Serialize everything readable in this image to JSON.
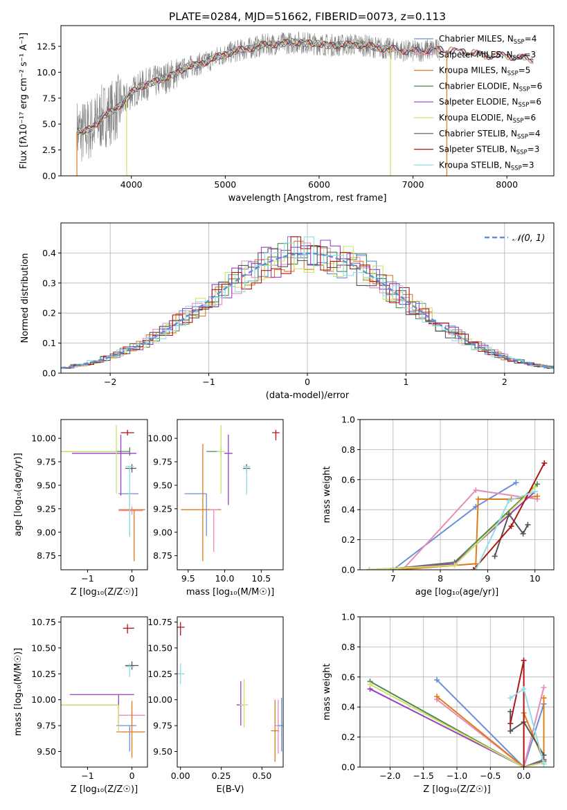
{
  "figure_title": "PLATE=0284, MJD=51662, FIBERID=0073, z=0.113",
  "colors": {
    "spectrum": "#808080",
    "Chabrier MILES": "#6a8fd8",
    "Salpeter MILES": "#e88ab8",
    "Kroupa MILES": "#e07b1a",
    "Chabrier ELODIE": "#4e8a4e",
    "Salpeter ELODIE": "#9a3fc4",
    "Kroupa ELODIE": "#cfe06a",
    "Chabrier STELIB": "#555555",
    "Salpeter STELIB": "#b01515",
    "Kroupa STELIB": "#8fdde6",
    "gaussian": "#5b8fd6"
  },
  "chart_data": [
    {
      "type": "line",
      "title": "PLATE=0284, MJD=51662, FIBERID=0073, z=0.113",
      "xlabel": "wavelength [Angstrom, rest frame]",
      "ylabel": "Flux [fλ10⁻¹⁷ erg cm⁻² s⁻¹ A⁻¹]",
      "xlim": [
        3250,
        8500
      ],
      "ylim": [
        0,
        14.5
      ],
      "xticks": [
        4000,
        5000,
        6000,
        7000,
        8000
      ],
      "yticks": [
        0.0,
        2.5,
        5.0,
        7.5,
        10.0,
        12.5
      ],
      "legend_position": "right",
      "legend": [
        {
          "label": "Chabrier MILES, N",
          "sub": "SSP",
          "suffix": "=4"
        },
        {
          "label": "Salpeter MILES, N",
          "sub": "SSP",
          "suffix": "=3"
        },
        {
          "label": "Kroupa MILES, N",
          "sub": "SSP",
          "suffix": "=5"
        },
        {
          "label": "Chabrier ELODIE, N",
          "sub": "SSP",
          "suffix": "=6"
        },
        {
          "label": "Salpeter ELODIE, N",
          "sub": "SSP",
          "suffix": "=6"
        },
        {
          "label": "Kroupa ELODIE, N",
          "sub": "SSP",
          "suffix": "=6"
        },
        {
          "label": "Chabrier STELIB, N",
          "sub": "SSP",
          "suffix": "=4"
        },
        {
          "label": "Salpeter STELIB, N",
          "sub": "SSP",
          "suffix": "=3"
        },
        {
          "label": "Kroupa STELIB, N",
          "sub": "SSP",
          "suffix": "=3"
        }
      ],
      "model_continuum": [
        [
          3420,
          4.3
        ],
        [
          3500,
          4.2
        ],
        [
          3600,
          4.8
        ],
        [
          3700,
          5.8
        ],
        [
          3800,
          6.2
        ],
        [
          3900,
          7.0
        ],
        [
          4000,
          8.0
        ],
        [
          4100,
          8.6
        ],
        [
          4200,
          9.0
        ],
        [
          4300,
          9.2
        ],
        [
          4400,
          9.6
        ],
        [
          4600,
          10.5
        ],
        [
          4800,
          11.0
        ],
        [
          5000,
          11.8
        ],
        [
          5200,
          12.2
        ],
        [
          5400,
          12.6
        ],
        [
          5600,
          12.8
        ],
        [
          5800,
          12.9
        ],
        [
          6000,
          12.7
        ],
        [
          6200,
          12.6
        ],
        [
          6400,
          12.7
        ],
        [
          6600,
          12.4
        ],
        [
          6800,
          12.2
        ],
        [
          7000,
          12.0
        ],
        [
          7200,
          12.2
        ],
        [
          7400,
          12.1
        ],
        [
          7600,
          11.9
        ],
        [
          7800,
          11.6
        ],
        [
          8000,
          11.6
        ],
        [
          8200,
          11.3
        ],
        [
          8280,
          11.2
        ]
      ]
    },
    {
      "type": "line",
      "xlabel": "(data-model)/error",
      "ylabel": "Normed distribution",
      "xlim": [
        -2.5,
        2.5
      ],
      "ylim": [
        0,
        0.5
      ],
      "xticks": [
        -2,
        -1,
        0,
        1,
        2
      ],
      "yticks": [
        0.0,
        0.1,
        0.2,
        0.3,
        0.4
      ],
      "grid": true,
      "legend_position": "top-right",
      "legend": "𝒩(0, 1)",
      "gaussian": {
        "mean": 0,
        "sigma": 1
      }
    },
    {
      "type": "scatter",
      "xlabel": "Z [log₁₀(Z/Z☉)]",
      "ylabel": "age  [log₁₀(age/yr)]",
      "xlim": [
        -1.6,
        0.35
      ],
      "ylim": [
        8.6,
        10.2
      ],
      "xticks": [
        -1,
        0
      ],
      "yticks": [
        8.75,
        9.0,
        9.25,
        9.5,
        9.75,
        10.0
      ],
      "points": [
        {
          "model": "Chabrier MILES",
          "x": -0.05,
          "y": 9.41,
          "xerr": [
            0.25,
            0.2
          ],
          "yerr": [
            0.45,
            0.0
          ]
        },
        {
          "model": "Salpeter MILES",
          "x": 0.0,
          "y": 9.23,
          "xerr": [
            0.3,
            0.25
          ],
          "yerr": [
            0.0,
            0.0
          ]
        },
        {
          "model": "Kroupa MILES",
          "x": 0.05,
          "y": 9.24,
          "xerr": [
            0.35,
            0.25
          ],
          "yerr": [
            0.55,
            0.0
          ]
        },
        {
          "model": "Chabrier ELODIE",
          "x": -0.05,
          "y": 9.86,
          "xerr": [
            1.55,
            0.0
          ],
          "yerr": [
            0.0,
            0.0
          ]
        },
        {
          "model": "Salpeter ELODIE",
          "x": -0.25,
          "y": 9.84,
          "xerr": [
            1.1,
            0.35
          ],
          "yerr": [
            0.45,
            0.2
          ]
        },
        {
          "model": "Kroupa ELODIE",
          "x": -0.35,
          "y": 9.86,
          "xerr": [
            1.25,
            0.0
          ],
          "yerr": [
            0.45,
            0.28
          ]
        },
        {
          "model": "Chabrier STELIB",
          "x": 0.0,
          "y": 9.68,
          "xerr": [
            0.15,
            0.1
          ],
          "yerr": [
            0.0,
            0.0
          ]
        },
        {
          "model": "Salpeter STELIB",
          "x": -0.1,
          "y": 10.06,
          "xerr": [
            0.15,
            0.15
          ],
          "yerr": [
            0.03,
            0.03
          ]
        },
        {
          "model": "Kroupa STELIB",
          "x": -0.05,
          "y": 9.7,
          "xerr": [
            0.0,
            0.0
          ],
          "yerr": [
            0.75,
            0.0
          ]
        }
      ]
    },
    {
      "type": "scatter",
      "xlabel": "mass [log₁₀(M/M☉)]",
      "xlim": [
        9.35,
        10.8
      ],
      "ylim": [
        8.6,
        10.2
      ],
      "xticks": [
        9.5,
        10.0,
        10.5
      ],
      "yticks": [
        8.75,
        9.0,
        9.25,
        9.5,
        9.75,
        10.0
      ],
      "points": [
        {
          "model": "Chabrier MILES",
          "x": 9.75,
          "y": 9.41,
          "xerr": [
            0.3,
            0.0
          ],
          "yerr": [
            0.45,
            0.0
          ]
        },
        {
          "model": "Kroupa MILES",
          "x": 9.7,
          "y": 9.24,
          "xerr": [
            0.3,
            0.25
          ],
          "yerr": [
            0.55,
            0.7
          ]
        },
        {
          "model": "Salpeter MILES",
          "x": 9.85,
          "y": 9.24,
          "xerr": [
            0.0,
            0.0
          ],
          "yerr": [
            0.45,
            0.0
          ]
        },
        {
          "model": "Chabrier ELODIE",
          "x": 9.95,
          "y": 9.86,
          "xerr": [
            0.2,
            0.0
          ],
          "yerr": [
            0.0,
            0.0
          ]
        },
        {
          "model": "Salpeter ELODIE",
          "x": 10.05,
          "y": 9.84,
          "xerr": [
            0.0,
            0.0
          ],
          "yerr": [
            0.55,
            0.2
          ]
        },
        {
          "model": "Kroupa ELODIE",
          "x": 9.95,
          "y": 9.86,
          "xerr": [
            0.0,
            0.0
          ],
          "yerr": [
            0.45,
            0.28
          ]
        },
        {
          "model": "Chabrier STELIB",
          "x": 10.3,
          "y": 9.68,
          "xerr": [
            0.05,
            0.05
          ],
          "yerr": [
            0.0,
            0.0
          ]
        },
        {
          "model": "Salpeter STELIB",
          "x": 10.7,
          "y": 10.06,
          "xerr": [
            0.05,
            0.05
          ],
          "yerr": [
            0.08,
            0.03
          ]
        },
        {
          "model": "Kroupa STELIB",
          "x": 10.3,
          "y": 9.7,
          "xerr": [
            0.05,
            0.05
          ],
          "yerr": [
            0.3,
            0.0
          ]
        }
      ]
    },
    {
      "type": "line",
      "xlabel": "age  [log₁₀(age/yr)]",
      "ylabel": "mass weight",
      "xlim": [
        6.3,
        10.4
      ],
      "ylim": [
        0,
        1.0
      ],
      "xticks": [
        7,
        8,
        9,
        10
      ],
      "yticks": [
        0.0,
        0.2,
        0.4,
        0.6,
        0.8,
        1.0
      ],
      "grid": true,
      "series": [
        {
          "model": "Chabrier MILES",
          "x": [
            7.0,
            8.75,
            9.6
          ],
          "y": [
            0.0,
            0.42,
            0.58
          ]
        },
        {
          "model": "Salpeter MILES",
          "x": [
            7.2,
            8.75,
            10.05
          ],
          "y": [
            0.0,
            0.53,
            0.47
          ]
        },
        {
          "model": "Kroupa MILES",
          "x": [
            7.1,
            8.75,
            8.8,
            9.5,
            10.05
          ],
          "y": [
            0.0,
            0.04,
            0.47,
            0.47,
            0.49
          ]
        },
        {
          "model": "Chabrier ELODIE",
          "x": [
            6.5,
            7.1,
            8.3,
            10.05
          ],
          "y": [
            0.0,
            0.01,
            0.05,
            0.57
          ]
        },
        {
          "model": "Salpeter ELODIE",
          "x": [
            6.5,
            7.1,
            8.3,
            10.0
          ],
          "y": [
            0.0,
            0.01,
            0.04,
            0.52
          ]
        },
        {
          "model": "Kroupa ELODIE",
          "x": [
            6.5,
            7.1,
            8.3,
            10.0
          ],
          "y": [
            0.0,
            0.01,
            0.03,
            0.55
          ]
        },
        {
          "model": "Chabrier STELIB",
          "x": [
            9.15,
            9.45,
            9.75,
            9.85
          ],
          "y": [
            0.09,
            0.37,
            0.24,
            0.3
          ]
        },
        {
          "model": "Salpeter STELIB",
          "x": [
            8.7,
            9.5,
            10.2
          ],
          "y": [
            0.0,
            0.29,
            0.71
          ]
        },
        {
          "model": "Kroupa STELIB",
          "x": [
            8.75,
            9.45,
            10.0
          ],
          "y": [
            0.0,
            0.46,
            0.52
          ]
        }
      ]
    },
    {
      "type": "scatter",
      "xlabel": "Z [log₁₀(Z/Z☉)]",
      "ylabel": "mass [log₁₀(M/M☉)]",
      "xlim": [
        -1.6,
        0.35
      ],
      "ylim": [
        9.35,
        10.8
      ],
      "xticks": [
        -1,
        0
      ],
      "yticks": [
        9.5,
        9.75,
        10.0,
        10.25,
        10.5,
        10.75
      ],
      "points": [
        {
          "model": "Chabrier MILES",
          "x": -0.05,
          "y": 9.75,
          "xerr": [
            0.3,
            0.15
          ],
          "yerr": [
            0.25,
            0.0
          ]
        },
        {
          "model": "Salpeter MILES",
          "x": 0.0,
          "y": 9.85,
          "xerr": [
            0.3,
            0.3
          ],
          "yerr": [
            0.0,
            0.0
          ]
        },
        {
          "model": "Kroupa MILES",
          "x": 0.0,
          "y": 9.69,
          "xerr": [
            0.35,
            0.3
          ],
          "yerr": [
            0.25,
            0.3
          ]
        },
        {
          "model": "Chabrier ELODIE",
          "x": -0.3,
          "y": 9.95,
          "xerr": [
            1.3,
            0.0
          ],
          "yerr": [
            0.0,
            0.0
          ]
        },
        {
          "model": "Salpeter ELODIE",
          "x": -0.3,
          "y": 10.05,
          "xerr": [
            1.1,
            0.35
          ],
          "yerr": [
            0.3,
            0.0
          ]
        },
        {
          "model": "Kroupa ELODIE",
          "x": -0.3,
          "y": 9.95,
          "xerr": [
            1.3,
            0.0
          ],
          "yerr": [
            0.25,
            0.0
          ]
        },
        {
          "model": "Chabrier STELIB",
          "x": 0.0,
          "y": 10.33,
          "xerr": [
            0.15,
            0.15
          ],
          "yerr": [
            0.0,
            0.0
          ]
        },
        {
          "model": "Salpeter STELIB",
          "x": -0.1,
          "y": 10.69,
          "xerr": [
            0.1,
            0.15
          ],
          "yerr": [
            0.05,
            0.04
          ]
        },
        {
          "model": "Kroupa STELIB",
          "x": -0.05,
          "y": 10.32,
          "xerr": [
            0.1,
            0.1
          ],
          "yerr": [
            0.1,
            0.03
          ]
        }
      ]
    },
    {
      "type": "scatter",
      "xlabel": "E(B-V)",
      "xlim": [
        -0.02,
        0.63
      ],
      "ylim": [
        9.35,
        10.8
      ],
      "xticks": [
        0.0,
        0.25,
        0.5
      ],
      "yticks": [
        9.5,
        9.75,
        10.0,
        10.25,
        10.5,
        10.75
      ],
      "points": [
        {
          "model": "Kroupa STELIB",
          "x": 0.0,
          "y": 10.25,
          "yerr": [
            0.1,
            0.1
          ]
        },
        {
          "model": "Salpeter STELIB",
          "x": 0.0,
          "y": 10.7,
          "yerr": [
            0.08,
            0.05
          ]
        },
        {
          "model": "Salpeter ELODIE",
          "x": 0.37,
          "y": 9.95,
          "yerr": [
            0.2,
            0.23
          ]
        },
        {
          "model": "Kroupa ELODIE",
          "x": 0.39,
          "y": 9.95,
          "yerr": [
            0.22,
            0.25
          ]
        },
        {
          "model": "Kroupa MILES",
          "x": 0.58,
          "y": 9.7,
          "yerr": [
            0.3,
            0.3
          ]
        },
        {
          "model": "Salpeter MILES",
          "x": 0.6,
          "y": 9.75,
          "yerr": [
            0.27,
            0.25
          ]
        },
        {
          "model": "Chabrier MILES",
          "x": 0.62,
          "y": 9.75,
          "yerr": [
            0.25,
            0.27
          ]
        }
      ]
    },
    {
      "type": "line",
      "xlabel": "Z [log₁₀(Z/Z☉)]",
      "ylabel": "mass weight",
      "xlim": [
        -2.45,
        0.45
      ],
      "ylim": [
        0,
        1.0
      ],
      "xticks": [
        -2.0,
        -1.5,
        -1.0,
        -0.5,
        0.0
      ],
      "yticks": [
        0.0,
        0.2,
        0.4,
        0.6,
        0.8,
        1.0
      ],
      "grid": true,
      "series": [
        {
          "model": "Chabrier MILES",
          "x": [
            -1.3,
            0.0,
            0.3
          ],
          "y": [
            0.58,
            0.0,
            0.42
          ]
        },
        {
          "model": "Salpeter MILES",
          "x": [
            -1.3,
            0.0,
            0.3
          ],
          "y": [
            0.45,
            0.0,
            0.53
          ]
        },
        {
          "model": "Kroupa MILES",
          "x": [
            -1.3,
            0.0,
            0.0,
            0.3,
            0.3
          ],
          "y": [
            0.47,
            0.0,
            0.36,
            0.04,
            0.46
          ]
        },
        {
          "model": "Chabrier ELODIE",
          "x": [
            -2.3,
            0.0,
            0.3
          ],
          "y": [
            0.57,
            0.0,
            0.05
          ]
        },
        {
          "model": "Salpeter ELODIE",
          "x": [
            -2.3,
            0.0,
            0.3
          ],
          "y": [
            0.52,
            0.0,
            0.04
          ]
        },
        {
          "model": "Kroupa ELODIE",
          "x": [
            -2.3,
            0.0,
            0.3
          ],
          "y": [
            0.55,
            0.0,
            0.03
          ]
        },
        {
          "model": "Chabrier STELIB",
          "x": [
            -0.2,
            -0.2,
            0.0,
            0.3
          ],
          "y": [
            0.37,
            0.24,
            0.3,
            0.08
          ]
        },
        {
          "model": "Salpeter STELIB",
          "x": [
            -0.2,
            0.0,
            0.0
          ],
          "y": [
            0.29,
            0.71,
            0.0
          ]
        },
        {
          "model": "Kroupa STELIB",
          "x": [
            -0.2,
            0.0,
            0.3
          ],
          "y": [
            0.46,
            0.52,
            0.02
          ]
        }
      ]
    }
  ]
}
